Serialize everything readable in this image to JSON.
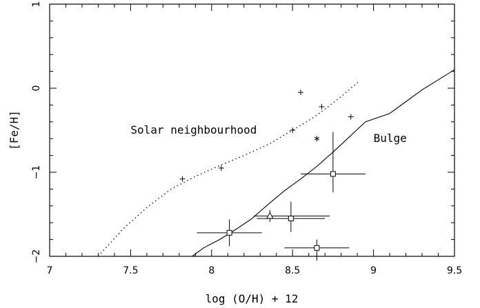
{
  "chart_data": {
    "type": "scatter",
    "xlabel": "log (O/H) + 12",
    "ylabel": "[Fe/H]",
    "xlim": [
      7,
      9.5
    ],
    "ylim": [
      -2,
      1
    ],
    "x_ticks": [
      {
        "value": 7,
        "label": "7"
      },
      {
        "value": 7.5,
        "label": "7.5"
      },
      {
        "value": 8,
        "label": "8"
      },
      {
        "value": 8.5,
        "label": "8.5"
      },
      {
        "value": 9,
        "label": "9"
      },
      {
        "value": 9.5,
        "label": "9.5"
      }
    ],
    "y_ticks": [
      {
        "value": -2,
        "label": "−2"
      },
      {
        "value": -1,
        "label": "−1"
      },
      {
        "value": 0,
        "label": "0"
      },
      {
        "value": 1,
        "label": "1"
      }
    ],
    "grid": false,
    "annotations": [
      {
        "text": "Solar neighbourhood",
        "x": 7.5,
        "y": -0.5
      },
      {
        "text": "Bulge",
        "x": 9.0,
        "y": -0.6
      }
    ],
    "series": [
      {
        "style": "dotted",
        "x": [
          7.3,
          7.45,
          7.6,
          7.75,
          7.9,
          8.05,
          8.2,
          8.35,
          8.5,
          8.62,
          8.72,
          8.8,
          8.86,
          8.9,
          8.91
        ],
        "y": [
          -2.0,
          -1.68,
          -1.42,
          -1.2,
          -1.05,
          -0.92,
          -0.8,
          -0.67,
          -0.5,
          -0.36,
          -0.22,
          -0.1,
          0.0,
          0.06,
          0.1
        ]
      },
      {
        "style": "solid",
        "x": [
          7.88,
          7.95,
          8.05,
          8.15,
          8.25,
          8.35,
          8.45,
          8.55,
          8.65,
          8.75,
          8.85,
          8.95,
          9.1,
          9.2,
          9.3,
          9.4,
          9.5
        ],
        "y": [
          -2.0,
          -1.9,
          -1.8,
          -1.68,
          -1.55,
          -1.38,
          -1.22,
          -1.08,
          -0.93,
          -0.76,
          -0.58,
          -0.4,
          -0.3,
          -0.16,
          -0.02,
          0.1,
          0.22
        ]
      }
    ],
    "points": [
      {
        "marker": "plus",
        "x": 7.82,
        "y": -1.08
      },
      {
        "marker": "plus",
        "x": 8.06,
        "y": -0.95
      },
      {
        "marker": "plus",
        "x": 8.5,
        "y": -0.5
      },
      {
        "marker": "plus",
        "x": 8.55,
        "y": -0.05
      },
      {
        "marker": "plus",
        "x": 8.68,
        "y": -0.22
      },
      {
        "marker": "plus",
        "x": 8.86,
        "y": -0.34
      },
      {
        "marker": "asterisk",
        "x": 8.65,
        "y": -0.6
      },
      {
        "marker": "square",
        "x": 8.11,
        "y": -1.72,
        "xerr": [
          0.2,
          0.2
        ],
        "yerr": [
          0.16,
          0.16
        ]
      },
      {
        "marker": "triangle",
        "x": 8.36,
        "y": -1.52,
        "xerr": [
          0.1,
          0.37
        ],
        "yerr": [
          0.07,
          0.07
        ]
      },
      {
        "marker": "square",
        "x": 8.49,
        "y": -1.55,
        "xerr": [
          0.21,
          0.21
        ],
        "yerr": [
          0.16,
          0.2
        ]
      },
      {
        "marker": "square",
        "x": 8.65,
        "y": -1.9,
        "xerr": [
          0.2,
          0.2
        ],
        "yerr": [
          0.15,
          0.1
        ]
      },
      {
        "marker": "square",
        "x": 8.75,
        "y": -1.02,
        "xerr": [
          0.2,
          0.2
        ],
        "yerr": [
          0.22,
          0.5
        ]
      }
    ]
  }
}
